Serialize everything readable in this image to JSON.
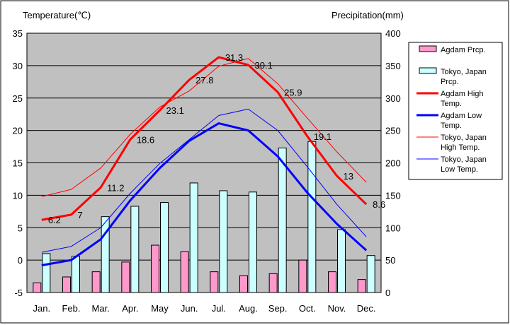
{
  "chart_data": {
    "type": "bar+line",
    "left_axis_title": "Temperature(℃)",
    "right_axis_title": "Precipitation(mm)",
    "categories": [
      "Jan.",
      "Feb.",
      "Mar.",
      "Apr.",
      "May",
      "Jun.",
      "Jul.",
      "Aug.",
      "Sep.",
      "Oct.",
      "Nov.",
      "Dec."
    ],
    "temp_axis": {
      "min": -5,
      "max": 35,
      "step": 5
    },
    "precip_axis": {
      "min": 0,
      "max": 400,
      "step": 50
    },
    "bar_series": [
      {
        "name": "Agdam Prcp.",
        "color": "#ff99cc",
        "values": [
          15,
          24,
          32,
          47,
          73,
          63,
          32,
          26,
          29,
          50,
          32,
          20
        ]
      },
      {
        "name": "Tokyo, Japan Prcp.",
        "color": "#ccffff",
        "values": [
          60,
          56,
          117,
          133,
          139,
          169,
          157,
          155,
          223,
          233,
          97,
          57
        ]
      }
    ],
    "line_series": [
      {
        "name": "Agdam High Temp.",
        "color": "#ff0000",
        "width": 3,
        "values": [
          6.2,
          7,
          11.2,
          18.6,
          23.1,
          27.8,
          31.3,
          30.1,
          25.9,
          19.1,
          13,
          8.6
        ],
        "labels": true
      },
      {
        "name": "Agdam Low Temp.",
        "color": "#0000ff",
        "width": 3,
        "values": [
          -0.8,
          0,
          3.2,
          9.2,
          14.2,
          18.4,
          21.1,
          20,
          16,
          10.4,
          5.6,
          1.5
        ],
        "labels": false
      },
      {
        "name": "Tokyo, Japan High Temp.",
        "color": "#ff0000",
        "width": 1,
        "values": [
          9.8,
          10.9,
          14.2,
          19.4,
          23.6,
          26.1,
          29.9,
          31.1,
          27.2,
          21.9,
          16.7,
          12
        ],
        "labels": false
      },
      {
        "name": "Tokyo, Japan Low Temp.",
        "color": "#0000ff",
        "width": 1,
        "values": [
          1.2,
          2.1,
          5,
          10.3,
          14.9,
          18.6,
          22.3,
          23.3,
          20,
          14.4,
          8.6,
          3.6
        ],
        "labels": false
      }
    ],
    "legend": [
      {
        "key": "pink-bar",
        "lines": [
          "Agdam Prcp."
        ]
      },
      {
        "key": "cyan-bar",
        "lines": [
          "Tokyo, Japan",
          "Prcp."
        ]
      },
      {
        "key": "red-thick",
        "lines": [
          "Agdam High",
          "Temp."
        ]
      },
      {
        "key": "blue-thick",
        "lines": [
          "Agdam Low",
          "Temp."
        ]
      },
      {
        "key": "red-thin",
        "lines": [
          "Tokyo, Japan",
          "High Temp."
        ]
      },
      {
        "key": "blue-thin",
        "lines": [
          "Tokyo, Japan",
          "Low Temp."
        ]
      }
    ],
    "plot_background": "#c0c0c0",
    "grid": true
  }
}
